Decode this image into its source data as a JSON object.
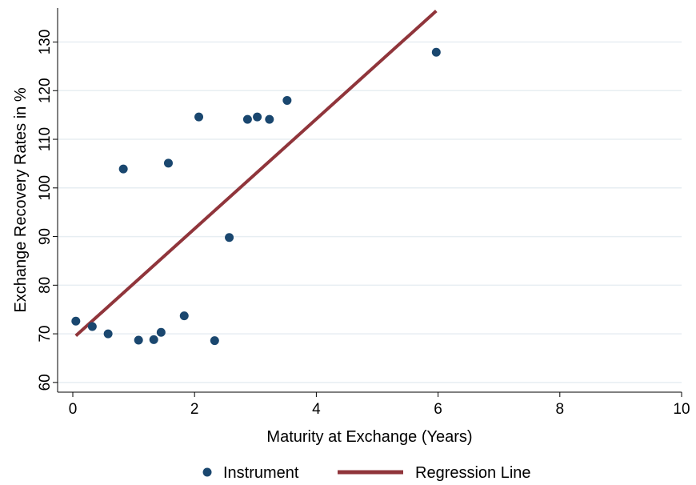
{
  "chart_data": {
    "type": "scatter",
    "xlabel": "Maturity at Exchange (Years)",
    "ylabel": "Exchange Recovery Rates in %",
    "xlim": [
      0,
      10
    ],
    "ylim": [
      58,
      137
    ],
    "xticks": [
      0,
      2,
      4,
      6,
      8,
      10
    ],
    "yticks": [
      60,
      70,
      80,
      90,
      100,
      110,
      120,
      130
    ],
    "grid": "horizontal",
    "legend_position": "bottom",
    "series": [
      {
        "name": "Instrument",
        "kind": "scatter",
        "color": "#1a476f",
        "points": [
          {
            "x": 0.05,
            "y": 72.6
          },
          {
            "x": 0.32,
            "y": 71.5
          },
          {
            "x": 0.58,
            "y": 70.0
          },
          {
            "x": 0.83,
            "y": 103.9
          },
          {
            "x": 1.08,
            "y": 68.7
          },
          {
            "x": 1.33,
            "y": 68.8
          },
          {
            "x": 1.45,
            "y": 70.3
          },
          {
            "x": 1.57,
            "y": 105.1
          },
          {
            "x": 1.83,
            "y": 73.7
          },
          {
            "x": 2.07,
            "y": 114.6
          },
          {
            "x": 2.33,
            "y": 68.6
          },
          {
            "x": 2.57,
            "y": 89.8
          },
          {
            "x": 2.87,
            "y": 114.1
          },
          {
            "x": 3.03,
            "y": 114.6
          },
          {
            "x": 3.23,
            "y": 114.1
          },
          {
            "x": 3.52,
            "y": 118.0
          },
          {
            "x": 5.97,
            "y": 127.9
          }
        ]
      },
      {
        "name": "Regression Line",
        "kind": "line",
        "color": "#90353b",
        "points": [
          {
            "x": 0.05,
            "y": 69.6
          },
          {
            "x": 5.97,
            "y": 136.4
          }
        ]
      }
    ]
  }
}
